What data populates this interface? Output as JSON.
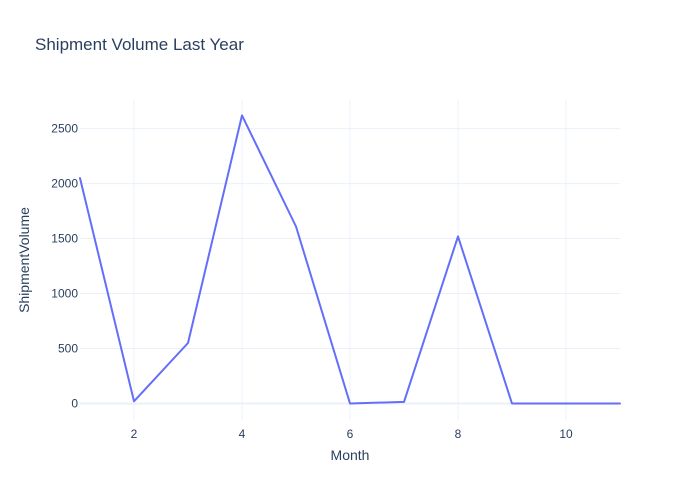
{
  "chart_data": {
    "type": "line",
    "title": "Shipment Volume Last Year",
    "xlabel": "Month",
    "ylabel": "ShipmentVolume",
    "x": [
      1,
      2,
      3,
      4,
      5,
      6,
      7,
      8,
      9,
      10,
      11
    ],
    "series": [
      {
        "values": [
          2050,
          20,
          550,
          2620,
          1610,
          0,
          15,
          1520,
          0,
          0,
          0
        ],
        "color": "#636efa"
      }
    ],
    "xlim": [
      1,
      11
    ],
    "ylim": [
      -150,
      2760
    ],
    "xticks": [
      2,
      4,
      6,
      8,
      10
    ],
    "yticks": [
      0,
      500,
      1000,
      1500,
      2000,
      2500
    ],
    "grid": true,
    "legend": "none"
  }
}
